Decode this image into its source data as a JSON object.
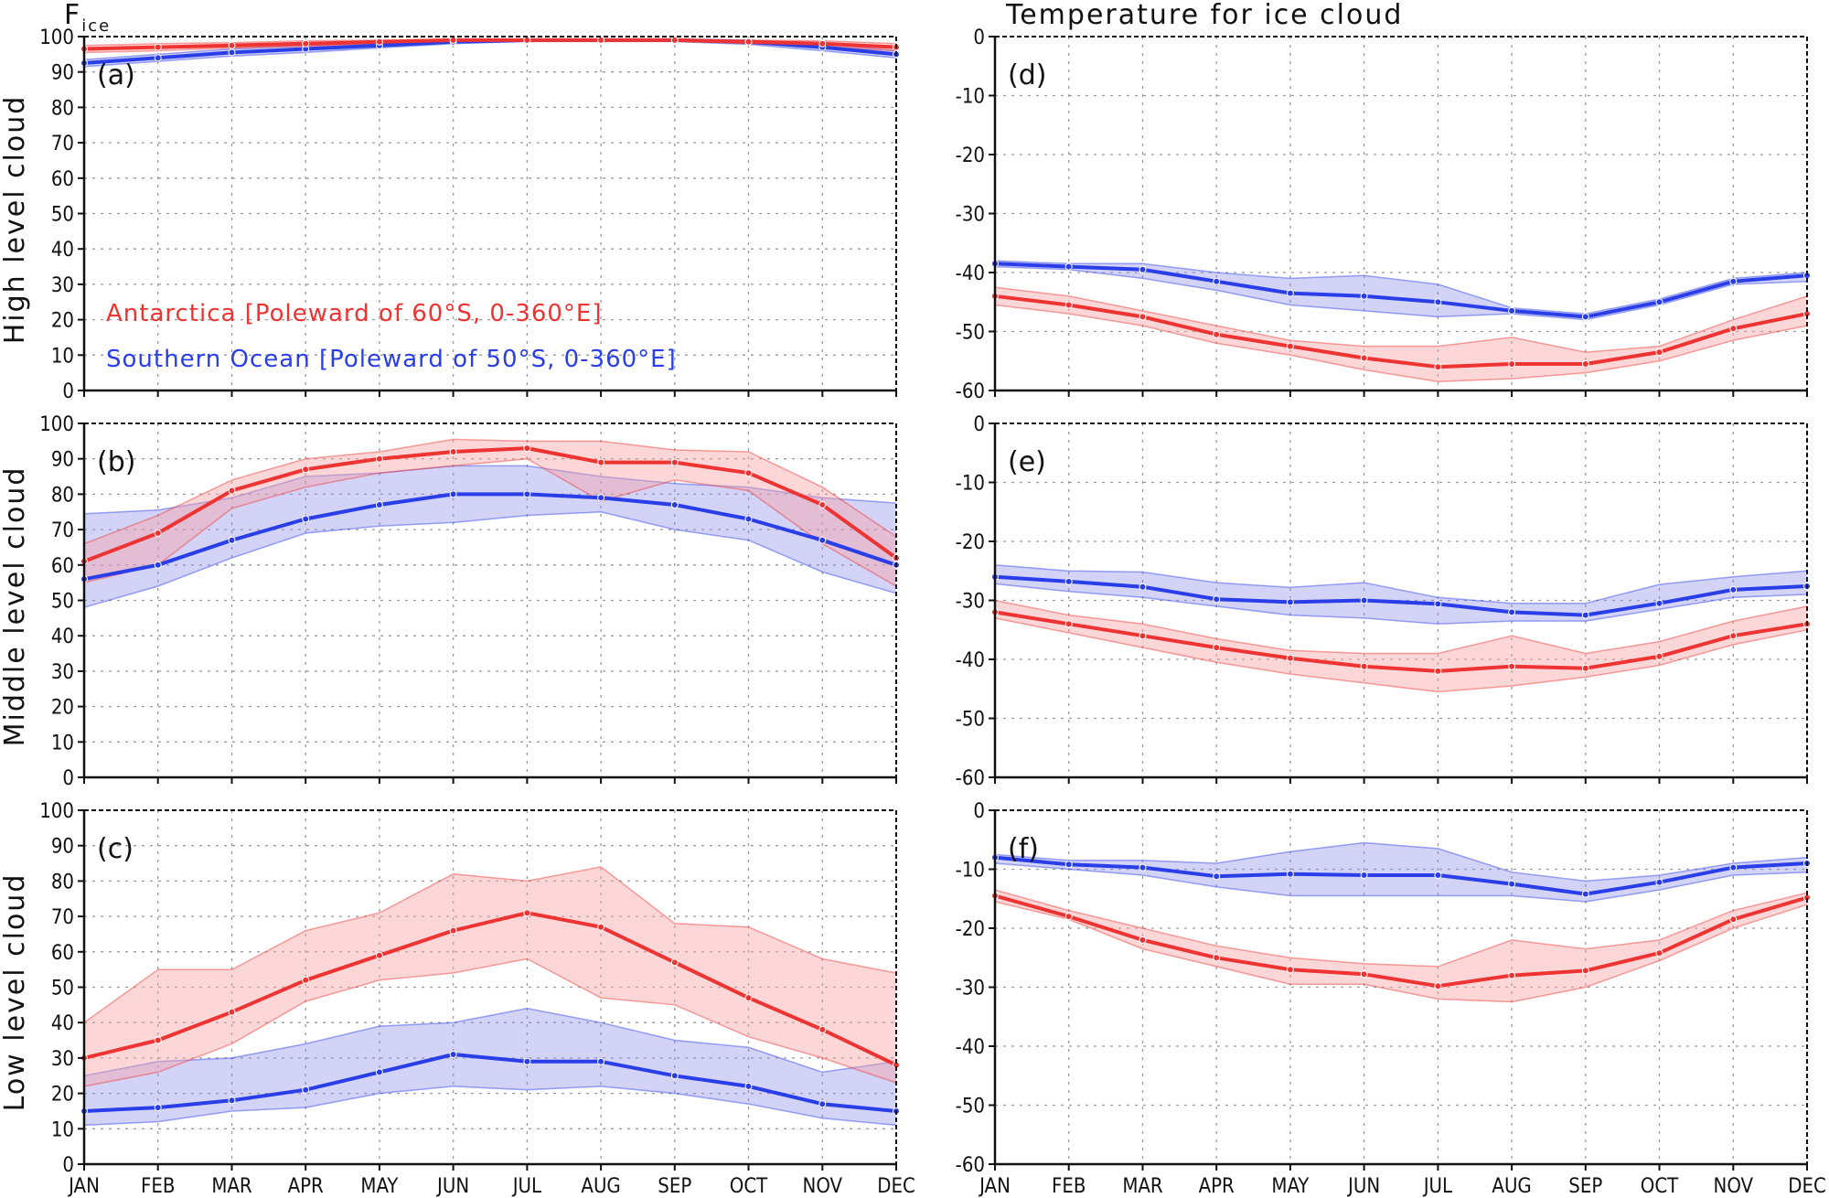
{
  "colors": {
    "antarctica": "#ee3333",
    "southern_ocean": "#2a3ee8",
    "antarctica_fill": "rgba(250,160,160,0.42)",
    "southern_ocean_fill": "rgba(130,130,235,0.35)",
    "grid": "#9a9a9a",
    "frame": "#111111"
  },
  "titles": {
    "left_main": "F",
    "left_sub": "ice",
    "right": "Temperature for ice cloud"
  },
  "row_labels": [
    "High level cloud",
    "Middle level cloud",
    "Low level cloud"
  ],
  "legend": {
    "antarctica": "Antarctica [Poleward of 60°S, 0-360°E]",
    "southern_ocean": "Southern Ocean [Poleward of 50°S, 0-360°E]"
  },
  "chart_data": [
    {
      "id": "a",
      "panel_label": "(a)",
      "type": "line",
      "quantity": "Fice",
      "categories": [
        "JAN",
        "FEB",
        "MAR",
        "APR",
        "MAY",
        "JUN",
        "JUL",
        "AUG",
        "SEP",
        "OCT",
        "NOV",
        "DEC"
      ],
      "ylim": [
        0,
        100
      ],
      "yticks": [
        0,
        10,
        20,
        30,
        40,
        50,
        60,
        70,
        80,
        90,
        100
      ],
      "series": [
        {
          "name": "Antarctica",
          "values": [
            96.5,
            97,
            97.5,
            98,
            98.5,
            99,
            99,
            99,
            99,
            98.5,
            98,
            97
          ],
          "lower": [
            95.5,
            96,
            96.8,
            97.2,
            98,
            98.5,
            98.8,
            98.8,
            98.8,
            98,
            97.2,
            96
          ],
          "upper": [
            97.5,
            98,
            98.3,
            98.8,
            99,
            99.3,
            99.3,
            99.3,
            99.3,
            99,
            98.8,
            98
          ]
        },
        {
          "name": "Southern Ocean",
          "values": [
            92.5,
            94,
            95.5,
            96.5,
            97.5,
            98.5,
            99,
            99,
            99,
            98.5,
            97,
            95
          ],
          "lower": [
            91.5,
            93,
            94.5,
            95.5,
            96.8,
            98,
            98.6,
            98.6,
            98.6,
            97.8,
            96,
            94
          ],
          "upper": [
            93.5,
            95,
            96.5,
            97.5,
            98.2,
            99,
            99.3,
            99.3,
            99.3,
            99,
            98,
            96
          ]
        }
      ]
    },
    {
      "id": "b",
      "panel_label": "(b)",
      "type": "line",
      "quantity": "Fice",
      "categories": [
        "JAN",
        "FEB",
        "MAR",
        "APR",
        "MAY",
        "JUN",
        "JUL",
        "AUG",
        "SEP",
        "OCT",
        "NOV",
        "DEC"
      ],
      "ylim": [
        0,
        100
      ],
      "yticks": [
        0,
        10,
        20,
        30,
        40,
        50,
        60,
        70,
        80,
        90,
        100
      ],
      "series": [
        {
          "name": "Antarctica",
          "values": [
            61,
            69,
            81,
            87,
            90,
            92,
            93,
            89,
            89,
            86,
            77,
            62
          ],
          "lower": [
            55,
            60,
            76,
            82,
            86,
            88,
            90,
            78,
            84,
            81,
            66,
            54
          ],
          "upper": [
            66,
            74,
            84,
            90,
            92,
            95.5,
            95,
            95,
            92.5,
            92,
            82,
            68
          ]
        },
        {
          "name": "Southern Ocean",
          "values": [
            56,
            60,
            67,
            73,
            77,
            80,
            80,
            79,
            77,
            73,
            67,
            60
          ],
          "lower": [
            48,
            54,
            62,
            69,
            71,
            72,
            74,
            75,
            70,
            67,
            58,
            52
          ],
          "upper": [
            74.5,
            75.5,
            79,
            85,
            86,
            88,
            88,
            85,
            83,
            82,
            79,
            77.5
          ]
        }
      ]
    },
    {
      "id": "c",
      "panel_label": "(c)",
      "type": "line",
      "quantity": "Fice",
      "categories": [
        "JAN",
        "FEB",
        "MAR",
        "APR",
        "MAY",
        "JUN",
        "JUL",
        "AUG",
        "SEP",
        "OCT",
        "NOV",
        "DEC"
      ],
      "ylim": [
        0,
        100
      ],
      "yticks": [
        0,
        10,
        20,
        30,
        40,
        50,
        60,
        70,
        80,
        90,
        100
      ],
      "series": [
        {
          "name": "Antarctica",
          "values": [
            30,
            35,
            43,
            52,
            59,
            66,
            71,
            67,
            57,
            47,
            38,
            28
          ],
          "lower": [
            22,
            26,
            34,
            46,
            52,
            54,
            58,
            47,
            45,
            36,
            30,
            23
          ],
          "upper": [
            40,
            55,
            55,
            66,
            71,
            82,
            80,
            84,
            68,
            67,
            58,
            54
          ]
        },
        {
          "name": "Southern Ocean",
          "values": [
            15,
            16,
            18,
            21,
            26,
            31,
            29,
            29,
            25,
            22,
            17,
            15
          ],
          "lower": [
            11,
            12,
            15,
            16,
            20,
            22,
            21,
            22,
            20,
            17,
            13,
            11
          ],
          "upper": [
            25,
            29,
            30,
            34,
            39,
            40,
            44,
            40,
            35,
            33,
            26,
            29
          ]
        }
      ]
    },
    {
      "id": "d",
      "panel_label": "(d)",
      "type": "line",
      "quantity": "Temperature for ice cloud",
      "categories": [
        "JAN",
        "FEB",
        "MAR",
        "APR",
        "MAY",
        "JUN",
        "JUL",
        "AUG",
        "SEP",
        "OCT",
        "NOV",
        "DEC"
      ],
      "ylim": [
        -60,
        0
      ],
      "yticks": [
        -60,
        -50,
        -40,
        -30,
        -20,
        -10,
        0
      ],
      "series": [
        {
          "name": "Antarctica",
          "values": [
            -44,
            -45.5,
            -47.5,
            -50.5,
            -52.5,
            -54.5,
            -56,
            -55.5,
            -55.5,
            -53.5,
            -49.5,
            -47
          ],
          "lower": [
            -45.5,
            -47,
            -49,
            -52,
            -54,
            -56.5,
            -58.5,
            -58,
            -57,
            -55,
            -51.5,
            -49
          ],
          "upper": [
            -42.5,
            -44,
            -46.5,
            -49,
            -51.5,
            -52.5,
            -52.5,
            -51,
            -53.5,
            -52.5,
            -48,
            -44
          ]
        },
        {
          "name": "Southern Ocean",
          "values": [
            -38.5,
            -39,
            -39.5,
            -41.5,
            -43.5,
            -44,
            -45,
            -46.5,
            -47.5,
            -45,
            -41.5,
            -40.5
          ],
          "lower": [
            -39,
            -39.5,
            -41,
            -43,
            -45.5,
            -46.5,
            -47.5,
            -47,
            -48,
            -45.5,
            -42,
            -41.5
          ],
          "upper": [
            -38,
            -38.5,
            -38.5,
            -40,
            -41,
            -40.5,
            -42,
            -46,
            -47,
            -44.5,
            -41,
            -40
          ]
        }
      ]
    },
    {
      "id": "e",
      "panel_label": "(e)",
      "type": "line",
      "quantity": "Temperature for ice cloud",
      "categories": [
        "JAN",
        "FEB",
        "MAR",
        "APR",
        "MAY",
        "JUN",
        "JUL",
        "AUG",
        "SEP",
        "OCT",
        "NOV",
        "DEC"
      ],
      "ylim": [
        -60,
        0
      ],
      "yticks": [
        -60,
        -50,
        -40,
        -30,
        -20,
        -10,
        0
      ],
      "series": [
        {
          "name": "Antarctica",
          "values": [
            -32,
            -34,
            -36,
            -38,
            -39.8,
            -41.2,
            -42,
            -41.2,
            -41.5,
            -39.5,
            -36,
            -34
          ],
          "lower": [
            -33,
            -35.5,
            -38,
            -40.5,
            -42.5,
            -44,
            -45.5,
            -44.5,
            -43,
            -41,
            -37.5,
            -35
          ],
          "upper": [
            -30,
            -32.5,
            -34,
            -36.5,
            -38.5,
            -39,
            -39,
            -36,
            -39,
            -37,
            -33.5,
            -31
          ]
        },
        {
          "name": "Southern Ocean",
          "values": [
            -26,
            -26.8,
            -27.7,
            -29.8,
            -30.3,
            -30,
            -30.6,
            -32,
            -32.5,
            -30.5,
            -28.2,
            -27.6
          ],
          "lower": [
            -27.2,
            -28.5,
            -29.5,
            -31,
            -32.5,
            -33,
            -34,
            -33.5,
            -33.5,
            -31.5,
            -29.5,
            -29
          ],
          "upper": [
            -24,
            -25,
            -25.2,
            -27,
            -27.8,
            -27,
            -29.5,
            -30.5,
            -30.5,
            -27.3,
            -26,
            -25
          ]
        }
      ]
    },
    {
      "id": "f",
      "panel_label": "(f)",
      "type": "line",
      "quantity": "Temperature for ice cloud",
      "categories": [
        "JAN",
        "FEB",
        "MAR",
        "APR",
        "MAY",
        "JUN",
        "JUL",
        "AUG",
        "SEP",
        "OCT",
        "NOV",
        "DEC"
      ],
      "ylim": [
        -60,
        0
      ],
      "yticks": [
        -60,
        -50,
        -40,
        -30,
        -20,
        -10,
        0
      ],
      "series": [
        {
          "name": "Antarctica",
          "values": [
            -14.5,
            -18,
            -22,
            -25,
            -27,
            -27.8,
            -29.8,
            -28,
            -27.2,
            -24.2,
            -18.5,
            -14.8
          ],
          "lower": [
            -15.5,
            -18.5,
            -23.5,
            -26.5,
            -29.5,
            -29.5,
            -32,
            -32.5,
            -30,
            -25.5,
            -20,
            -16
          ],
          "upper": [
            -13.5,
            -17,
            -20,
            -23,
            -25,
            -26,
            -26.5,
            -22,
            -23.5,
            -22,
            -17,
            -14
          ]
        },
        {
          "name": "Southern Ocean",
          "values": [
            -8,
            -9.2,
            -9.7,
            -11.2,
            -10.8,
            -11,
            -11,
            -12.5,
            -14.2,
            -12.2,
            -9.7,
            -9
          ],
          "lower": [
            -9,
            -10,
            -11,
            -13,
            -14.5,
            -14.5,
            -14.5,
            -14.5,
            -15.5,
            -13.5,
            -11,
            -10.5
          ],
          "upper": [
            -7.5,
            -8.5,
            -8.5,
            -9,
            -7,
            -5.5,
            -6.5,
            -10.5,
            -12,
            -11,
            -9,
            -8
          ]
        }
      ]
    }
  ]
}
